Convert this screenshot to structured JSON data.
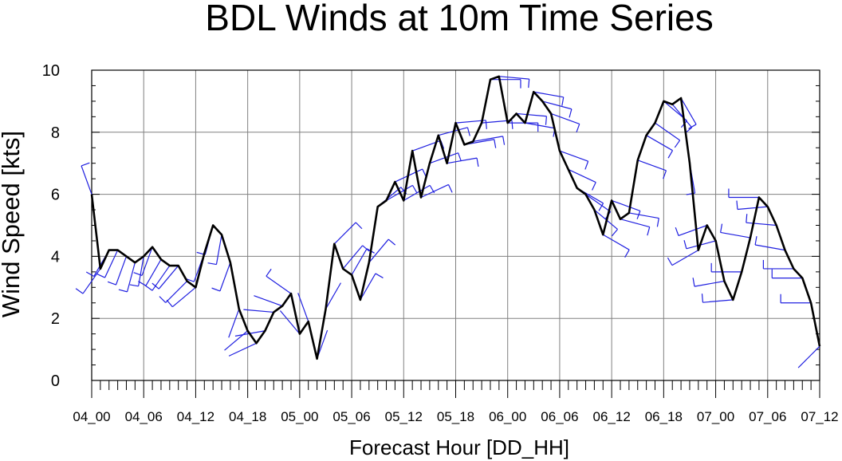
{
  "chart_data": {
    "type": "line",
    "title": "BDL Winds at 10m Time Series",
    "xlabel": "Forecast Hour [DD_HH]",
    "ylabel": "Wind Speed [kts]",
    "ylim": [
      0,
      10
    ],
    "xlim_hours": [
      0,
      84
    ],
    "grid": true,
    "yticks": [
      "0",
      "2",
      "4",
      "6",
      "8",
      "10"
    ],
    "xticks": [
      "04_00",
      "04_06",
      "04_12",
      "04_18",
      "05_00",
      "05_06",
      "05_12",
      "05_18",
      "06_00",
      "06_06",
      "06_12",
      "06_18",
      "07_00",
      "07_06",
      "07_12"
    ],
    "colors": {
      "line": "#000000",
      "barbs": "#2020e0",
      "grid": "#808080"
    },
    "series": [
      {
        "hours": [
          0,
          1,
          2,
          3,
          4,
          5,
          6,
          7,
          8,
          9,
          10,
          11,
          12,
          13,
          14,
          15,
          16,
          17,
          18,
          19,
          20,
          21,
          22,
          23,
          24,
          25,
          26,
          27,
          28,
          29,
          30,
          31,
          32,
          33,
          34,
          35,
          36,
          37,
          38,
          39,
          40,
          41,
          42,
          43,
          44,
          45,
          46,
          47,
          48,
          49,
          50,
          51,
          52,
          53,
          54,
          55,
          56,
          57,
          58,
          59,
          60,
          61,
          62,
          63,
          64,
          65,
          66,
          67,
          68,
          69,
          70,
          71,
          72,
          73,
          74,
          75,
          76,
          77,
          78,
          79,
          80,
          81,
          82,
          83,
          84
        ],
        "values": [
          6.0,
          3.6,
          4.2,
          4.2,
          4.0,
          3.8,
          4.0,
          4.3,
          3.9,
          3.7,
          3.7,
          3.2,
          3.0,
          4.1,
          5.0,
          4.7,
          3.8,
          2.3,
          1.6,
          1.2,
          1.6,
          2.2,
          2.4,
          2.8,
          1.5,
          1.9,
          0.7,
          2.3,
          4.4,
          3.6,
          3.4,
          2.6,
          3.8,
          5.6,
          5.8,
          6.4,
          5.8,
          7.4,
          5.9,
          7.0,
          7.9,
          7.0,
          8.3,
          7.6,
          7.7,
          8.3,
          9.7,
          9.8,
          8.3,
          8.6,
          8.3,
          9.3,
          9.0,
          8.6,
          7.4,
          6.8,
          6.2,
          6.0,
          5.5,
          4.7,
          5.8,
          5.2,
          5.4,
          7.1,
          7.9,
          8.3,
          9.0,
          8.9,
          9.1,
          7.0,
          4.2,
          5.0,
          4.5,
          3.2,
          2.6,
          3.5,
          4.6,
          5.9,
          5.6,
          5.0,
          4.2,
          3.6,
          3.3,
          2.5,
          1.1
        ]
      }
    ],
    "wind_directions_deg": [
      340,
      215,
      210,
      205,
      200,
      195,
      190,
      200,
      210,
      215,
      220,
      225,
      230,
      200,
      195,
      190,
      200,
      200,
      230,
      245,
      260,
      275,
      290,
      305,
      320,
      340,
      20,
      30,
      45,
      40,
      30,
      30,
      40,
      50,
      60,
      65,
      60,
      70,
      65,
      70,
      75,
      80,
      85,
      80,
      80,
      85,
      90,
      95,
      90,
      95,
      100,
      100,
      105,
      110,
      110,
      115,
      120,
      125,
      130,
      120,
      110,
      105,
      100,
      110,
      120,
      125,
      130,
      140,
      150,
      170,
      240,
      250,
      255,
      260,
      265,
      270,
      280,
      270,
      265,
      275,
      280,
      270,
      270,
      270,
      225
    ]
  }
}
